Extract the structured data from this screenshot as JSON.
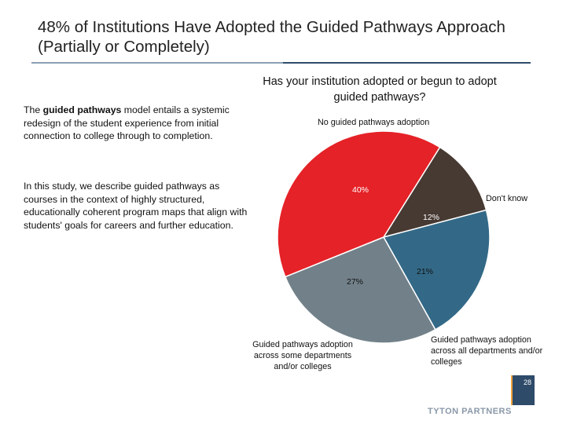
{
  "slide": {
    "title": "48% of Institutions Have Adopted the Guided Pathways Approach (Partially or Completely)",
    "question": "Has your institution adopted or begun to adopt guided pathways?",
    "description_1": {
      "prefix": "The ",
      "bold": "guided pathways",
      "suffix": " model entails a systemic redesign of the student experience from initial connection to college through to completion."
    },
    "description_2": "In this study, we describe guided pathways as courses in the context of highly structured, educationally coherent program maps that align with students' goals for careers and further education.",
    "brand": "TYTON PARTNERS",
    "page_number": "28"
  },
  "chart_data": {
    "type": "pie",
    "title": "Has your institution adopted or begun to adopt guided pathways?",
    "start_angle_deg": -58,
    "direction": "clockwise",
    "slices": [
      {
        "label": "Don't know",
        "value": 12,
        "value_label": "12%",
        "color": "#473a33"
      },
      {
        "label": "Guided pathways adoption across all departments and/or colleges",
        "value": 21,
        "value_label": "21%",
        "color": "#336987"
      },
      {
        "label": "Guided pathways adoption across some departments and/or colleges",
        "value": 27,
        "value_label": "27%",
        "color": "#728189"
      },
      {
        "label": "No guided pathways adoption",
        "value": 40,
        "value_label": "40%",
        "color": "#e52227"
      }
    ]
  },
  "colors": {
    "title_rule": "#2e4b6a",
    "brand_text": "#8a98a8",
    "page_badge": "#2e4b6a",
    "badge_accent": "#f2a33a"
  }
}
